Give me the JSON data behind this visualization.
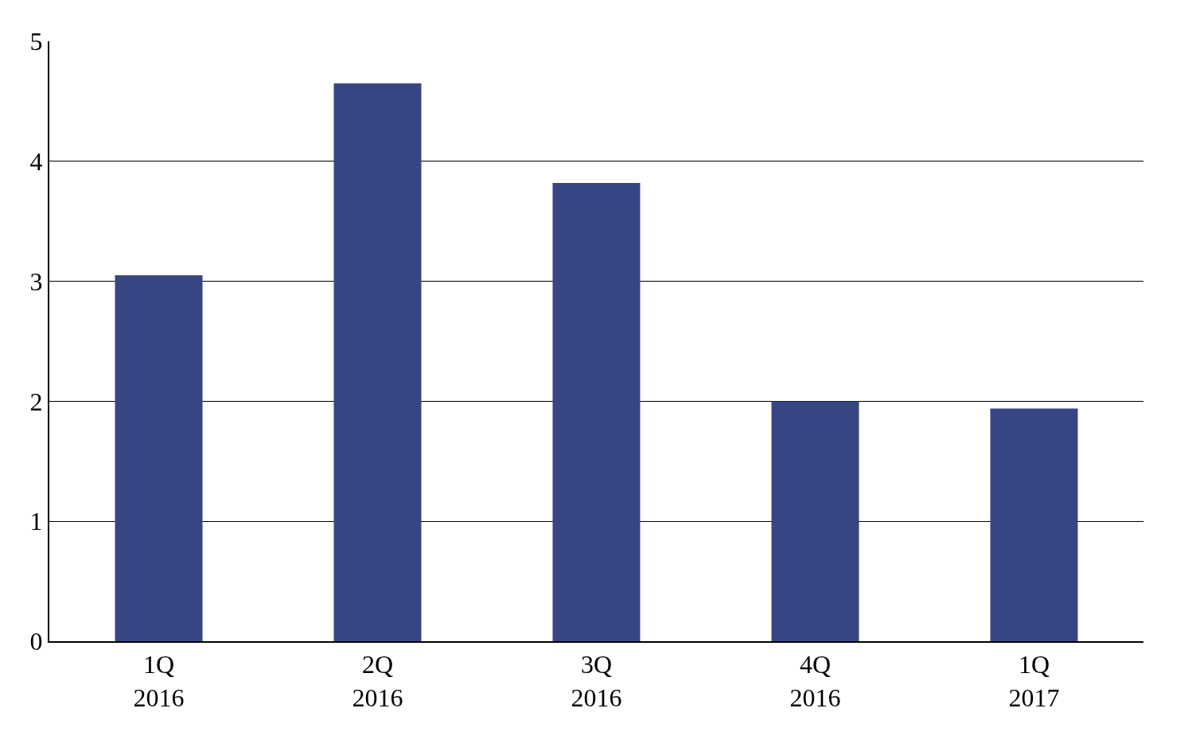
{
  "chart_data": {
    "type": "bar",
    "categories": [
      "1Q\n2016",
      "2Q\n2016",
      "3Q\n2016",
      "4Q\n2016",
      "1Q\n2017"
    ],
    "values": [
      3.05,
      4.65,
      3.82,
      2.0,
      1.94
    ],
    "color": "#374682",
    "ylim": [
      0,
      5
    ],
    "yticks": [
      0,
      1,
      2,
      3,
      4,
      5
    ],
    "grid": "y",
    "legend": false
  }
}
